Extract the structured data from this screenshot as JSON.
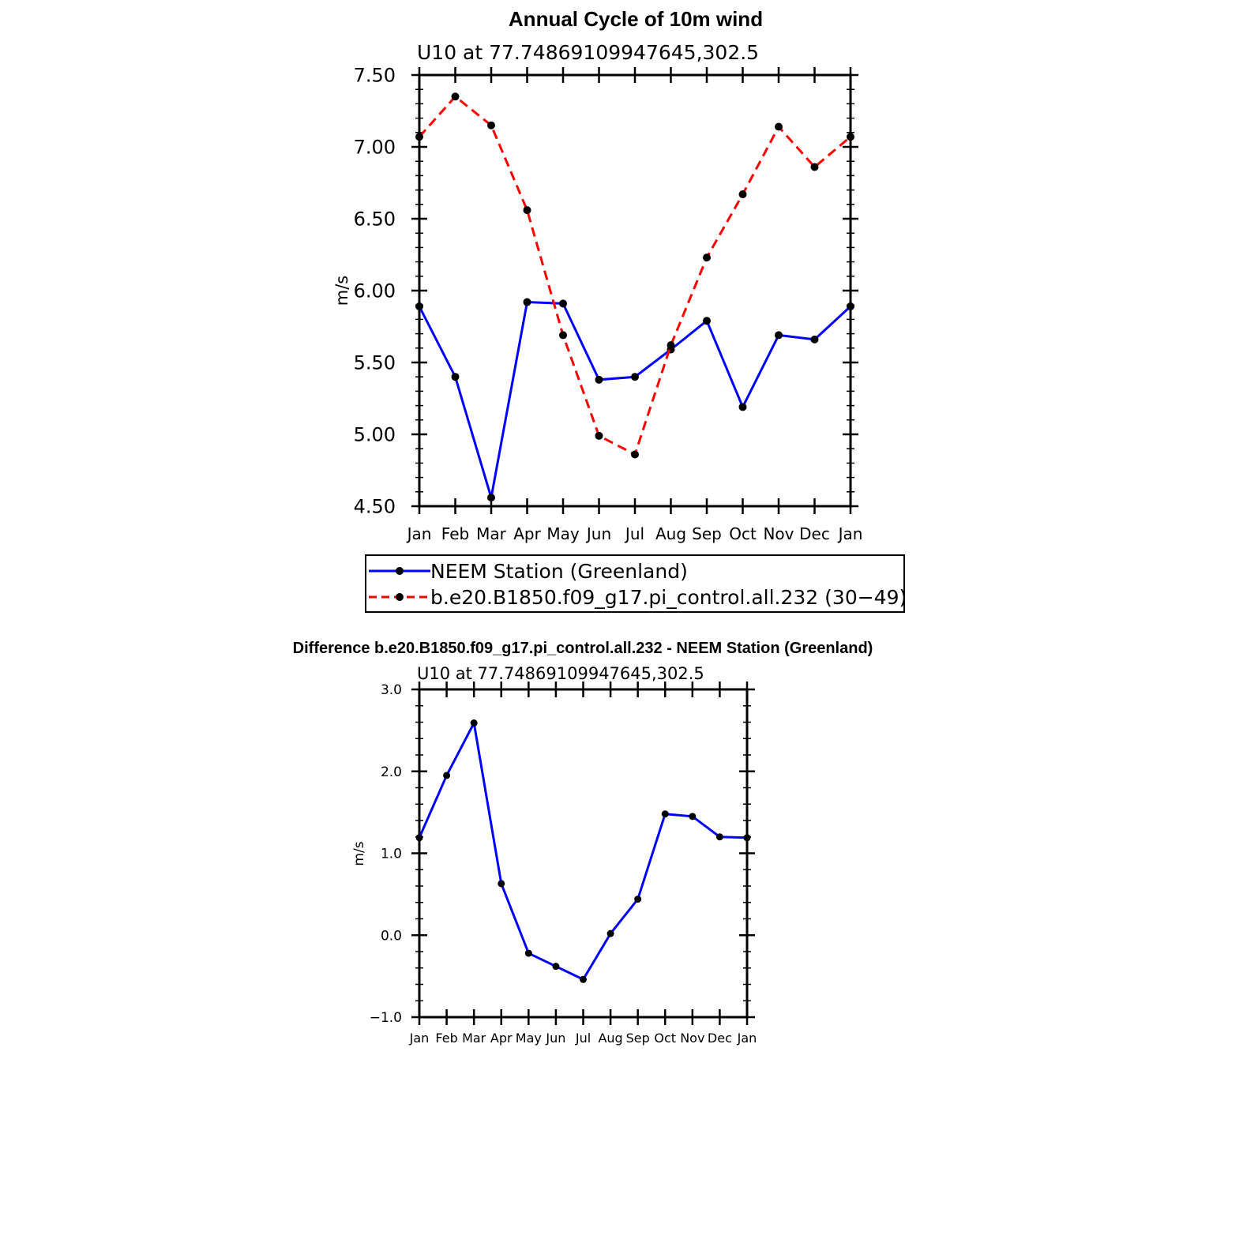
{
  "chart_data": [
    {
      "type": "line",
      "title": "Annual Cycle of 10m wind",
      "subtitle": "U10  at  77.74869109947645,302.5",
      "ylabel": "m/s",
      "xlabel": "",
      "categories": [
        "Jan",
        "Feb",
        "Mar",
        "Apr",
        "May",
        "Jun",
        "Jul",
        "Aug",
        "Sep",
        "Oct",
        "Nov",
        "Dec",
        "Jan"
      ],
      "ylim": [
        4.5,
        7.5
      ],
      "yticks": [
        "4.50",
        "5.00",
        "5.50",
        "6.00",
        "6.50",
        "7.00",
        "7.50"
      ],
      "series": [
        {
          "name": "NEEM Station (Greenland)",
          "color": "#0000ff",
          "dash": "solid",
          "values": [
            5.89,
            5.4,
            4.56,
            5.92,
            5.91,
            5.38,
            5.4,
            5.59,
            5.79,
            5.19,
            5.69,
            5.66,
            5.89
          ]
        },
        {
          "name": "b.e20.B1850.f09_g17.pi_control.all.232 (30−49)",
          "color": "#ff0000",
          "dash": "dashed",
          "values": [
            7.07,
            7.35,
            7.15,
            6.56,
            5.69,
            4.99,
            4.86,
            5.62,
            6.23,
            6.67,
            7.14,
            6.86,
            7.07
          ]
        }
      ],
      "legend": "below"
    },
    {
      "type": "line",
      "title": "Difference b.e20.B1850.f09_g17.pi_control.all.232 - NEEM Station (Greenland)",
      "subtitle": "U10  at  77.74869109947645,302.5",
      "ylabel": "m/s",
      "xlabel": "",
      "categories": [
        "Jan",
        "Feb",
        "Mar",
        "Apr",
        "May",
        "Jun",
        "Jul",
        "Aug",
        "Sep",
        "Oct",
        "Nov",
        "Dec",
        "Jan"
      ],
      "ylim": [
        -1.0,
        3.0
      ],
      "yticks": [
        "−1.0",
        "0.0",
        "1.0",
        "2.0",
        "3.0"
      ],
      "series": [
        {
          "name": "Difference",
          "color": "#0000ff",
          "dash": "solid",
          "values": [
            1.19,
            1.95,
            2.59,
            0.63,
            -0.22,
            -0.38,
            -0.54,
            0.02,
            0.44,
            1.48,
            1.45,
            1.2,
            1.19
          ]
        }
      ]
    }
  ]
}
